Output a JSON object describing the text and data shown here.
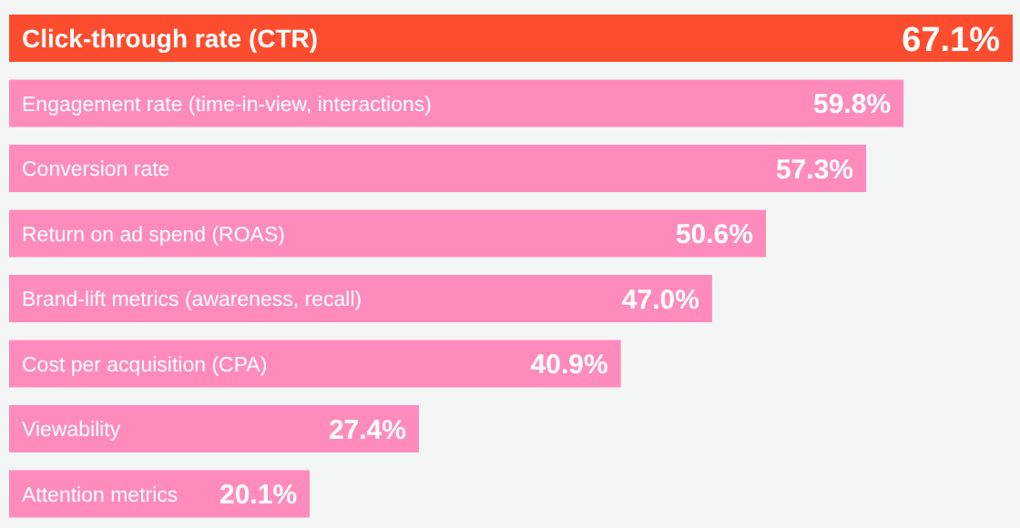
{
  "chart_data": {
    "type": "bar",
    "orientation": "horizontal",
    "categories": [
      "Click-through rate (CTR)",
      "Engagement rate (time-in-view, interactions)",
      "Conversion rate",
      "Return on ad spend (ROAS)",
      "Brand-lift metrics (awareness, recall)",
      "Cost per acquisition (CPA)",
      "Viewability",
      "Attention metrics"
    ],
    "values": [
      67.1,
      59.8,
      57.3,
      50.6,
      47.0,
      40.9,
      27.4,
      20.1
    ],
    "value_labels": [
      "67.1%",
      "59.8%",
      "57.3%",
      "50.6%",
      "47.0%",
      "40.9%",
      "27.4%",
      "20.1%"
    ],
    "colors": [
      "#fe4d2e",
      "#ff8bbd",
      "#ff8bbd",
      "#ff8bbd",
      "#ff8bbd",
      "#ff8bbd",
      "#ff8bbd",
      "#ff8bbd"
    ]
  }
}
